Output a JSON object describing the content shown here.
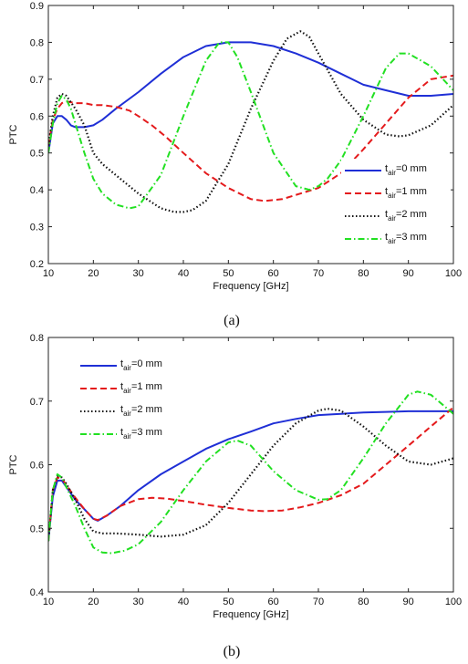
{
  "chart_data": [
    {
      "type": "line",
      "panel_label": "(a)",
      "xlabel": "Frequency [GHz]",
      "ylabel": "PTC",
      "xlim": [
        10,
        100
      ],
      "ylim": [
        0.2,
        0.9
      ],
      "xticks": [
        10,
        20,
        30,
        40,
        50,
        60,
        70,
        80,
        90,
        100
      ],
      "yticks": [
        0.2,
        0.3,
        0.4,
        0.5,
        0.6,
        0.7,
        0.8,
        0.9
      ],
      "grid": false,
      "legend_placement": "bottom-right",
      "series": [
        {
          "name_main": "t",
          "name_sub": "air",
          "name_rest": "=0 mm",
          "color": "#1f2fd6",
          "dash": "solid",
          "x": [
            10,
            11,
            12,
            13,
            14,
            15,
            16,
            17,
            18,
            20,
            22,
            25,
            30,
            35,
            40,
            45,
            50,
            55,
            60,
            65,
            70,
            75,
            80,
            85,
            90,
            95,
            100
          ],
          "y": [
            0.5,
            0.58,
            0.6,
            0.6,
            0.59,
            0.575,
            0.57,
            0.57,
            0.57,
            0.575,
            0.59,
            0.62,
            0.665,
            0.715,
            0.76,
            0.79,
            0.8,
            0.8,
            0.79,
            0.77,
            0.745,
            0.715,
            0.685,
            0.67,
            0.655,
            0.655,
            0.66
          ]
        },
        {
          "name_main": "t",
          "name_sub": "air",
          "name_rest": "=1 mm",
          "color": "#e41a1c",
          "dash": "dashed",
          "x": [
            10,
            11,
            12,
            13,
            14,
            16,
            18,
            20,
            22,
            25,
            28,
            30,
            33,
            36,
            40,
            45,
            50,
            55,
            58,
            62,
            66,
            70,
            75,
            80,
            85,
            90,
            95,
            100
          ],
          "y": [
            0.52,
            0.59,
            0.62,
            0.635,
            0.64,
            0.635,
            0.635,
            0.63,
            0.63,
            0.625,
            0.615,
            0.6,
            0.575,
            0.545,
            0.5,
            0.445,
            0.405,
            0.375,
            0.37,
            0.375,
            0.39,
            0.405,
            0.445,
            0.51,
            0.58,
            0.65,
            0.7,
            0.71
          ]
        },
        {
          "name_main": "t",
          "name_sub": "air",
          "name_rest": "=2 mm",
          "color": "#111111",
          "dash": "dotted",
          "x": [
            10,
            11,
            12,
            13,
            14,
            16,
            18,
            20,
            22,
            25,
            30,
            35,
            38,
            40,
            42,
            45,
            50,
            55,
            60,
            63,
            66,
            68,
            70,
            75,
            80,
            85,
            88,
            90,
            95,
            100
          ],
          "y": [
            0.52,
            0.6,
            0.65,
            0.66,
            0.655,
            0.62,
            0.575,
            0.5,
            0.47,
            0.44,
            0.39,
            0.35,
            0.34,
            0.34,
            0.345,
            0.37,
            0.47,
            0.62,
            0.75,
            0.81,
            0.83,
            0.815,
            0.77,
            0.66,
            0.59,
            0.55,
            0.545,
            0.548,
            0.575,
            0.63
          ]
        },
        {
          "name_main": "t",
          "name_sub": "air",
          "name_rest": "=3 mm",
          "color": "#22e022",
          "dash": "dashdot",
          "x": [
            10,
            11,
            12,
            13,
            14,
            15,
            16,
            18,
            20,
            22,
            25,
            28,
            30,
            35,
            40,
            45,
            48,
            50,
            52,
            55,
            60,
            65,
            68,
            70,
            72,
            75,
            80,
            85,
            88,
            90,
            95,
            100
          ],
          "y": [
            0.5,
            0.58,
            0.635,
            0.655,
            0.645,
            0.62,
            0.58,
            0.5,
            0.43,
            0.39,
            0.36,
            0.35,
            0.355,
            0.44,
            0.6,
            0.75,
            0.8,
            0.8,
            0.76,
            0.665,
            0.5,
            0.41,
            0.4,
            0.41,
            0.43,
            0.48,
            0.6,
            0.73,
            0.77,
            0.77,
            0.735,
            0.67
          ]
        }
      ]
    },
    {
      "type": "line",
      "panel_label": "(b)",
      "xlabel": "Frequency [GHz]",
      "ylabel": "PTC",
      "xlim": [
        10,
        100
      ],
      "ylim": [
        0.4,
        0.8
      ],
      "xticks": [
        10,
        20,
        30,
        40,
        50,
        60,
        70,
        80,
        90,
        100
      ],
      "yticks": [
        0.4,
        0.5,
        0.6,
        0.7,
        0.8
      ],
      "grid": false,
      "legend_placement": "top-left",
      "series": [
        {
          "name_main": "t",
          "name_sub": "air",
          "name_rest": "=0 mm",
          "color": "#1f2fd6",
          "dash": "solid",
          "x": [
            10,
            11,
            12,
            13,
            14,
            16,
            18,
            20,
            21,
            23,
            26,
            30,
            35,
            40,
            45,
            50,
            55,
            60,
            65,
            70,
            75,
            80,
            85,
            90,
            95,
            100
          ],
          "y": [
            0.48,
            0.55,
            0.575,
            0.575,
            0.565,
            0.545,
            0.53,
            0.515,
            0.512,
            0.52,
            0.535,
            0.56,
            0.585,
            0.605,
            0.625,
            0.64,
            0.652,
            0.665,
            0.672,
            0.678,
            0.68,
            0.682,
            0.683,
            0.684,
            0.684,
            0.684
          ]
        },
        {
          "name_main": "t",
          "name_sub": "air",
          "name_rest": "=1 mm",
          "color": "#e41a1c",
          "dash": "dashed",
          "x": [
            10,
            11,
            12,
            13,
            14,
            16,
            18,
            20,
            21,
            23,
            26,
            30,
            33,
            36,
            40,
            45,
            50,
            55,
            58,
            62,
            66,
            70,
            75,
            80,
            85,
            90,
            95,
            100
          ],
          "y": [
            0.48,
            0.56,
            0.58,
            0.578,
            0.568,
            0.548,
            0.53,
            0.515,
            0.513,
            0.52,
            0.535,
            0.546,
            0.548,
            0.547,
            0.543,
            0.537,
            0.532,
            0.528,
            0.527,
            0.528,
            0.533,
            0.54,
            0.552,
            0.57,
            0.6,
            0.63,
            0.66,
            0.69
          ]
        },
        {
          "name_main": "t",
          "name_sub": "air",
          "name_rest": "=2 mm",
          "color": "#111111",
          "dash": "dotted",
          "x": [
            10,
            11,
            12,
            13,
            14,
            16,
            18,
            20,
            22,
            25,
            30,
            35,
            40,
            45,
            50,
            55,
            60,
            65,
            70,
            72,
            75,
            80,
            85,
            90,
            95,
            100
          ],
          "y": [
            0.48,
            0.56,
            0.582,
            0.58,
            0.57,
            0.545,
            0.515,
            0.495,
            0.492,
            0.492,
            0.49,
            0.487,
            0.49,
            0.505,
            0.54,
            0.585,
            0.63,
            0.665,
            0.685,
            0.688,
            0.685,
            0.66,
            0.63,
            0.605,
            0.6,
            0.61
          ]
        },
        {
          "name_main": "t",
          "name_sub": "air",
          "name_rest": "=3 mm",
          "color": "#22e022",
          "dash": "dashdot",
          "x": [
            10,
            11,
            12,
            13,
            14,
            16,
            18,
            20,
            22,
            24,
            27,
            30,
            35,
            40,
            45,
            50,
            52,
            55,
            60,
            65,
            70,
            72,
            75,
            80,
            85,
            90,
            92,
            95,
            100
          ],
          "y": [
            0.48,
            0.56,
            0.585,
            0.58,
            0.565,
            0.535,
            0.5,
            0.47,
            0.462,
            0.461,
            0.465,
            0.475,
            0.51,
            0.56,
            0.605,
            0.635,
            0.638,
            0.63,
            0.59,
            0.56,
            0.545,
            0.546,
            0.56,
            0.61,
            0.665,
            0.71,
            0.715,
            0.71,
            0.68
          ]
        }
      ]
    }
  ]
}
